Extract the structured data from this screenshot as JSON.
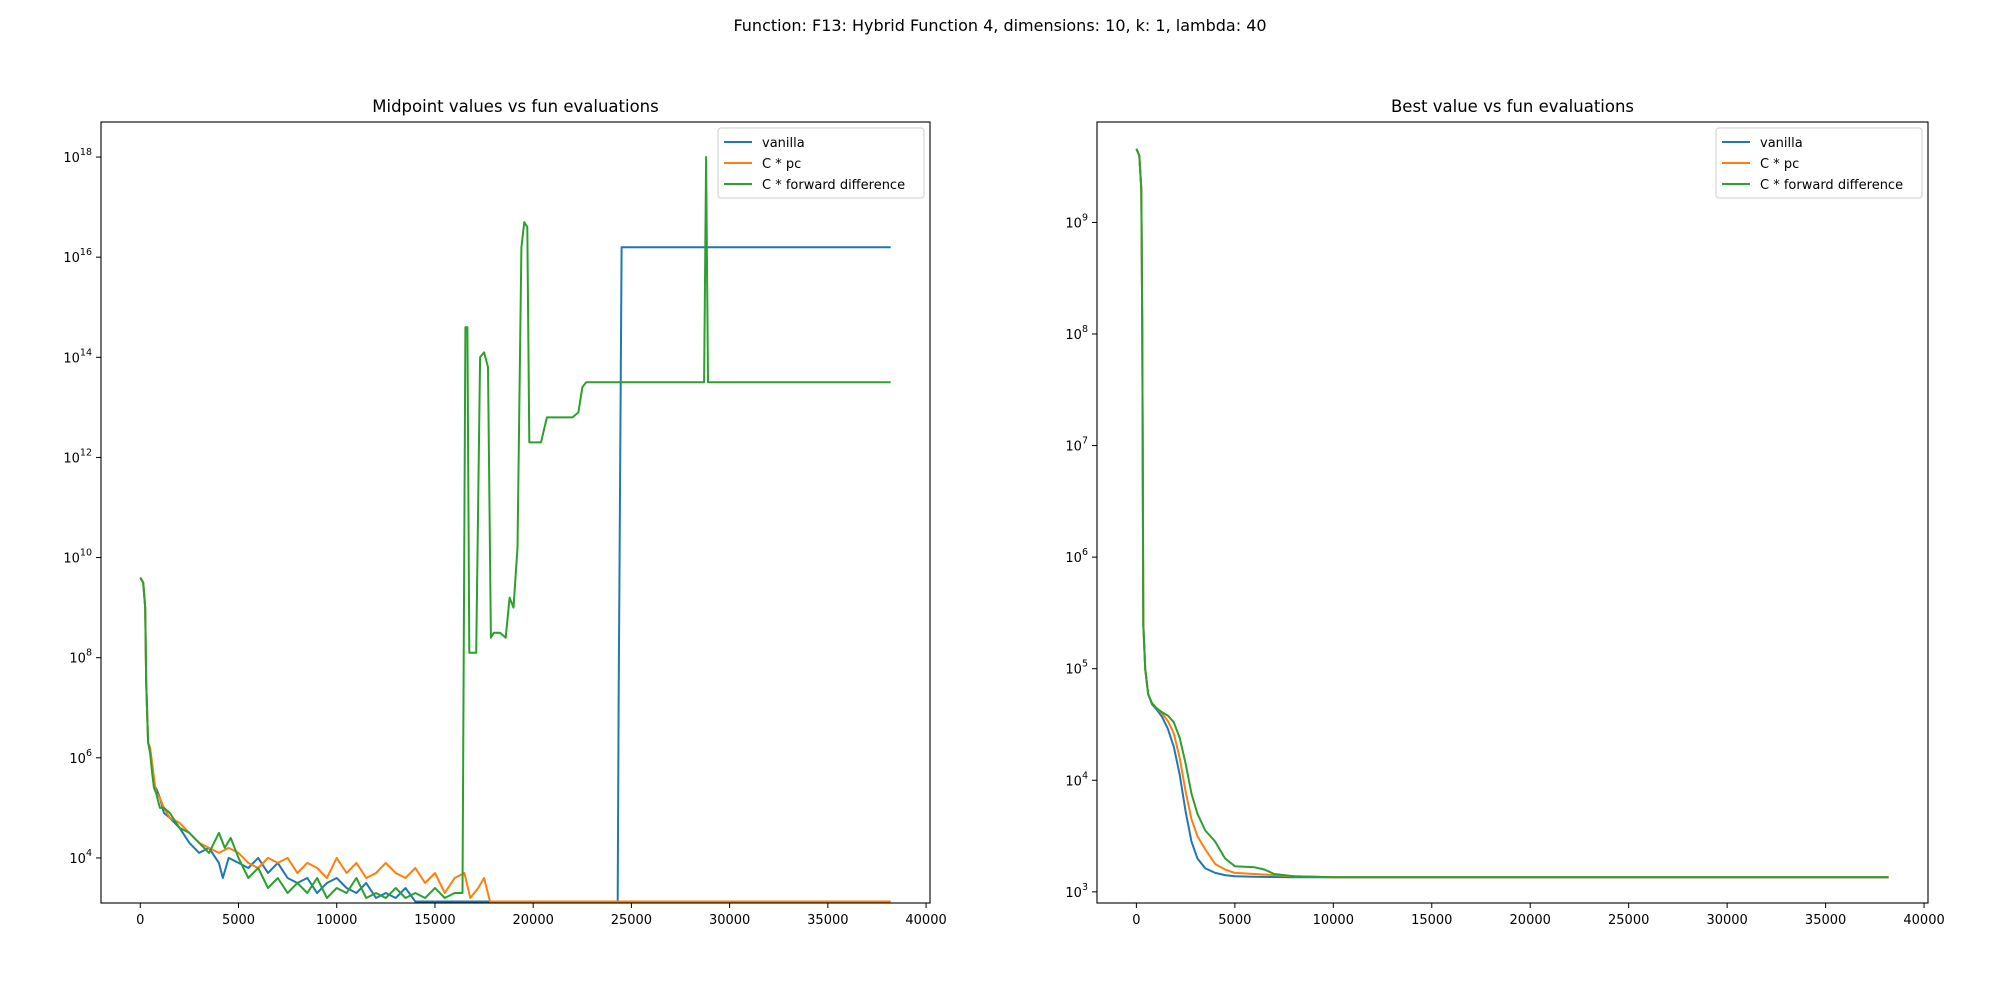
{
  "figure": {
    "suptitle": "Function: F13: Hybrid Function 4, dimensions: 10, k: 1, lambda: 40"
  },
  "colors": {
    "vanilla": "#1f77b4",
    "c_pc": "#ff7f0e",
    "c_forward_difference": "#2ca02c",
    "axes": "#000000",
    "legend_border": "#cccccc"
  },
  "chart_data": [
    {
      "type": "line",
      "title": "Midpoint values vs fun evaluations",
      "xlabel": "",
      "ylabel": "",
      "yscale": "log",
      "xlim": [
        -2000,
        40200
      ],
      "ylim_log10": [
        3.1,
        18.7
      ],
      "grid": false,
      "legend_position": "top-right",
      "xticks": [
        0,
        5000,
        10000,
        15000,
        20000,
        25000,
        30000,
        35000,
        40000
      ],
      "xtick_labels": [
        "0",
        "5000",
        "10000",
        "15000",
        "20000",
        "25000",
        "30000",
        "35000",
        "40000"
      ],
      "ytick_exponents": [
        4,
        6,
        8,
        10,
        12,
        14,
        16,
        18
      ],
      "ytick_base": "10",
      "series": [
        {
          "name": "vanilla",
          "x": [
            0,
            150,
            250,
            300,
            400,
            500,
            600,
            700,
            800,
            1000,
            1200,
            1500,
            2000,
            2500,
            3000,
            3500,
            4000,
            4200,
            4500,
            5000,
            5500,
            6000,
            6500,
            7000,
            7500,
            8000,
            8500,
            9000,
            9500,
            10000,
            10500,
            11000,
            11500,
            12000,
            12500,
            13000,
            13500,
            14000,
            15000,
            16000,
            17000,
            18000,
            20000,
            22000,
            24300,
            24350,
            24500,
            26000,
            30000,
            35000,
            38200
          ],
          "log10_y": [
            9.6,
            9.5,
            9.0,
            7.5,
            6.3,
            6.2,
            5.8,
            5.4,
            5.4,
            5.2,
            4.9,
            4.8,
            4.6,
            4.3,
            4.1,
            4.2,
            3.9,
            3.6,
            4.0,
            3.9,
            3.8,
            4.0,
            3.7,
            3.9,
            3.6,
            3.5,
            3.6,
            3.3,
            3.5,
            3.6,
            3.4,
            3.3,
            3.5,
            3.2,
            3.3,
            3.2,
            3.4,
            3.13,
            3.13,
            3.13,
            3.13,
            3.13,
            3.13,
            3.13,
            3.13,
            7.0,
            16.2,
            16.2,
            16.2,
            16.2,
            16.2
          ]
        },
        {
          "name": "C * pc",
          "x": [
            0,
            150,
            250,
            300,
            400,
            500,
            600,
            700,
            800,
            1000,
            1200,
            1500,
            2000,
            2500,
            3000,
            3500,
            4000,
            4500,
            5000,
            5500,
            6000,
            6500,
            7000,
            7500,
            8000,
            8500,
            9000,
            9500,
            10000,
            10500,
            11000,
            11500,
            12000,
            12500,
            13000,
            13500,
            14000,
            14500,
            15000,
            15500,
            16000,
            16500,
            16800,
            17200,
            17500,
            17800,
            18000,
            20000,
            25000,
            30000,
            35000,
            38200
          ],
          "log10_y": [
            9.6,
            9.5,
            9.0,
            7.5,
            6.3,
            6.2,
            5.9,
            5.6,
            5.3,
            5.2,
            5.0,
            4.8,
            4.7,
            4.5,
            4.3,
            4.2,
            4.1,
            4.2,
            4.1,
            3.9,
            3.8,
            4.0,
            3.9,
            4.0,
            3.7,
            3.9,
            3.8,
            3.6,
            4.0,
            3.7,
            3.9,
            3.6,
            3.7,
            3.9,
            3.7,
            3.6,
            3.8,
            3.5,
            3.7,
            3.3,
            3.6,
            3.7,
            3.2,
            3.4,
            3.6,
            3.13,
            3.13,
            3.13,
            3.13,
            3.13,
            3.13,
            3.13
          ]
        },
        {
          "name": "C * forward difference",
          "x": [
            0,
            150,
            250,
            300,
            400,
            500,
            600,
            700,
            800,
            1000,
            1200,
            1500,
            2000,
            2500,
            3000,
            3500,
            4000,
            4300,
            4600,
            5000,
            5500,
            6000,
            6500,
            7000,
            7500,
            8000,
            8500,
            9000,
            9500,
            10000,
            10500,
            11000,
            11500,
            12000,
            12500,
            13000,
            13500,
            14000,
            14500,
            15000,
            15500,
            16000,
            16400,
            16550,
            16650,
            16750,
            16850,
            17100,
            17300,
            17500,
            17700,
            17850,
            18000,
            18300,
            18600,
            18800,
            19000,
            19200,
            19400,
            19550,
            19700,
            19800,
            20000,
            20400,
            20700,
            21000,
            22000,
            22300,
            22500,
            22700,
            23000,
            25000,
            28000,
            28700,
            28800,
            28900,
            29000,
            30000,
            35000,
            38200
          ],
          "log10_y": [
            9.6,
            9.5,
            9.0,
            7.5,
            6.3,
            6.1,
            5.7,
            5.4,
            5.3,
            5.0,
            5.0,
            4.9,
            4.6,
            4.5,
            4.3,
            4.1,
            4.5,
            4.2,
            4.4,
            4.0,
            3.6,
            3.8,
            3.4,
            3.6,
            3.3,
            3.5,
            3.3,
            3.6,
            3.2,
            3.4,
            3.3,
            3.6,
            3.2,
            3.3,
            3.2,
            3.4,
            3.2,
            3.3,
            3.2,
            3.4,
            3.2,
            3.3,
            3.3,
            14.6,
            14.6,
            8.1,
            8.1,
            8.1,
            14.0,
            14.1,
            13.8,
            8.4,
            8.5,
            8.5,
            8.4,
            9.2,
            9.0,
            10.2,
            16.2,
            16.7,
            16.6,
            12.3,
            12.3,
            12.3,
            12.8,
            12.8,
            12.8,
            12.9,
            13.4,
            13.5,
            13.5,
            13.5,
            13.5,
            13.5,
            18.0,
            13.5,
            13.5,
            13.5,
            13.5,
            13.5
          ]
        }
      ]
    },
    {
      "type": "line",
      "title": "Best value vs fun evaluations",
      "xlabel": "",
      "ylabel": "",
      "yscale": "log",
      "xlim": [
        -2000,
        40200
      ],
      "ylim_log10": [
        2.9,
        9.9
      ],
      "grid": false,
      "legend_position": "top-right",
      "xticks": [
        0,
        5000,
        10000,
        15000,
        20000,
        25000,
        30000,
        35000,
        40000
      ],
      "xtick_labels": [
        "0",
        "5000",
        "10000",
        "15000",
        "20000",
        "25000",
        "30000",
        "35000",
        "40000"
      ],
      "ytick_exponents": [
        3,
        4,
        5,
        6,
        7,
        8,
        9
      ],
      "ytick_base": "10",
      "series": [
        {
          "name": "vanilla",
          "x": [
            0,
            150,
            250,
            300,
            350,
            450,
            600,
            800,
            1000,
            1300,
            1600,
            1900,
            2200,
            2500,
            2800,
            3100,
            3500,
            4000,
            4500,
            5000,
            6000,
            8000,
            10000,
            15000,
            20000,
            30000,
            38200
          ],
          "log10_y": [
            9.66,
            9.6,
            9.3,
            8.0,
            5.4,
            5.0,
            4.77,
            4.68,
            4.64,
            4.57,
            4.46,
            4.3,
            4.05,
            3.72,
            3.45,
            3.3,
            3.21,
            3.17,
            3.15,
            3.14,
            3.135,
            3.13,
            3.13,
            3.13,
            3.13,
            3.13,
            3.13
          ]
        },
        {
          "name": "C * pc",
          "x": [
            0,
            150,
            250,
            300,
            350,
            450,
            600,
            800,
            1000,
            1300,
            1600,
            1900,
            2200,
            2500,
            2800,
            3100,
            3500,
            4000,
            4500,
            5000,
            6000,
            8000,
            10000,
            15000,
            20000,
            30000,
            38200
          ],
          "log10_y": [
            9.66,
            9.6,
            9.3,
            8.0,
            5.4,
            5.0,
            4.77,
            4.69,
            4.65,
            4.6,
            4.53,
            4.42,
            4.2,
            3.9,
            3.65,
            3.5,
            3.38,
            3.25,
            3.2,
            3.17,
            3.16,
            3.14,
            3.13,
            3.13,
            3.13,
            3.13,
            3.13
          ]
        },
        {
          "name": "C * forward difference",
          "x": [
            0,
            150,
            250,
            300,
            350,
            450,
            600,
            800,
            1000,
            1300,
            1600,
            1900,
            2200,
            2500,
            2800,
            3100,
            3500,
            4000,
            4500,
            5000,
            6000,
            6500,
            7000,
            8000,
            10000,
            15000,
            20000,
            30000,
            38200
          ],
          "log10_y": [
            9.66,
            9.6,
            9.3,
            8.0,
            5.4,
            5.0,
            4.77,
            4.69,
            4.65,
            4.61,
            4.58,
            4.52,
            4.38,
            4.15,
            3.88,
            3.7,
            3.55,
            3.45,
            3.3,
            3.23,
            3.22,
            3.2,
            3.16,
            3.14,
            3.13,
            3.13,
            3.13,
            3.13,
            3.13
          ]
        }
      ]
    }
  ]
}
